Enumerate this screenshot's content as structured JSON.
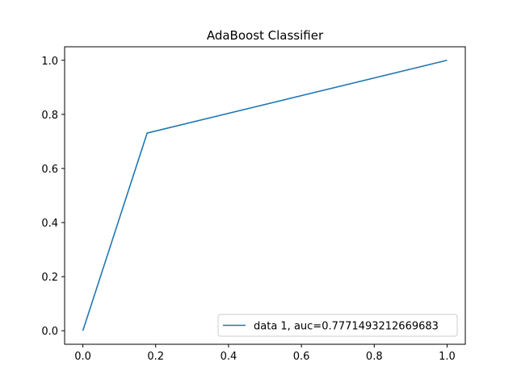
{
  "chart_data": {
    "type": "line",
    "title": "AdaBoost Classifier",
    "xlabel": "",
    "ylabel": "",
    "xlim": [
      -0.05,
      1.05
    ],
    "ylim": [
      -0.05,
      1.05
    ],
    "x_ticks": [
      0.0,
      0.2,
      0.4,
      0.6,
      0.8,
      1.0
    ],
    "y_ticks": [
      0.0,
      0.2,
      0.4,
      0.6,
      0.8,
      1.0
    ],
    "x_tick_labels": [
      "0.0",
      "0.2",
      "0.4",
      "0.6",
      "0.8",
      "1.0"
    ],
    "y_tick_labels": [
      "0.0",
      "0.2",
      "0.4",
      "0.6",
      "0.8",
      "1.0"
    ],
    "grid": false,
    "legend_position": "lower-right",
    "series": [
      {
        "name": "data 1, auc=0.7771493212669683",
        "color": "#1f77b4",
        "x": [
          0.0,
          0.1765,
          1.0
        ],
        "y": [
          0.0,
          0.7308,
          1.0
        ]
      }
    ]
  }
}
